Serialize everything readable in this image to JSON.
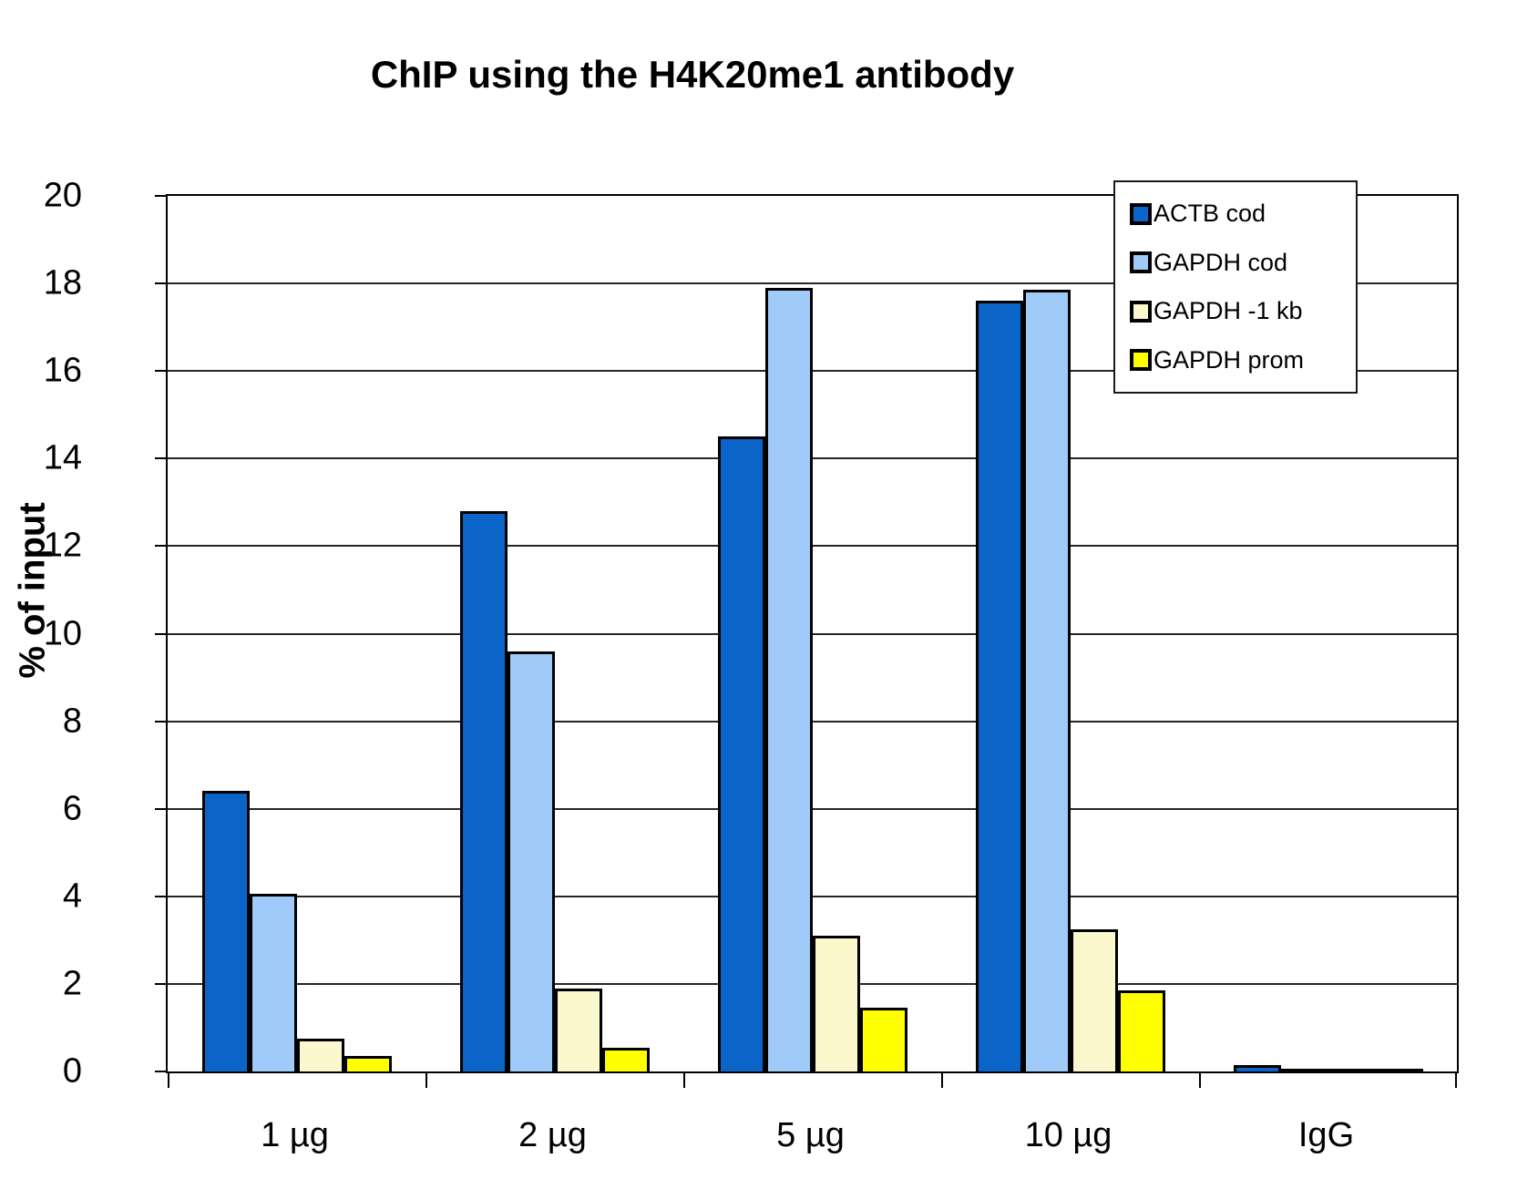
{
  "title": "ChIP using the H4K20me1 antibody",
  "colors": {
    "actb_cod": "#0B65C8",
    "gapdh_cod": "#A0CBF8",
    "gapdh_minus1kb": "#FBF8CE",
    "gapdh_prom": "#FFFF00",
    "axis": "#000000",
    "gridline": "#262626",
    "background": "#FFFFFF"
  },
  "chart_data": {
    "type": "bar",
    "title": "ChIP using the H4K20me1 antibody",
    "xlabel": "",
    "ylabel": "% of input",
    "ylim": [
      0,
      20
    ],
    "ytick_step": 2,
    "grid": true,
    "legend_position": "top-right-inside",
    "categories": [
      "1 µg",
      "2 µg",
      "5 µg",
      "10 µg",
      "IgG"
    ],
    "series": [
      {
        "name": "ACTB cod",
        "color": "#0B65C8",
        "values": [
          6.4,
          12.8,
          14.5,
          17.6,
          0.15
        ]
      },
      {
        "name": "GAPDH cod",
        "color": "#A0CBF8",
        "values": [
          4.05,
          9.6,
          17.9,
          17.85,
          0.05
        ]
      },
      {
        "name": "GAPDH -1 kb",
        "color": "#FBF8CE",
        "values": [
          0.75,
          1.9,
          3.1,
          3.25,
          0.05
        ]
      },
      {
        "name": "GAPDH prom",
        "color": "#FFFF00",
        "values": [
          0.35,
          0.55,
          1.45,
          1.85,
          0.05
        ]
      }
    ]
  }
}
